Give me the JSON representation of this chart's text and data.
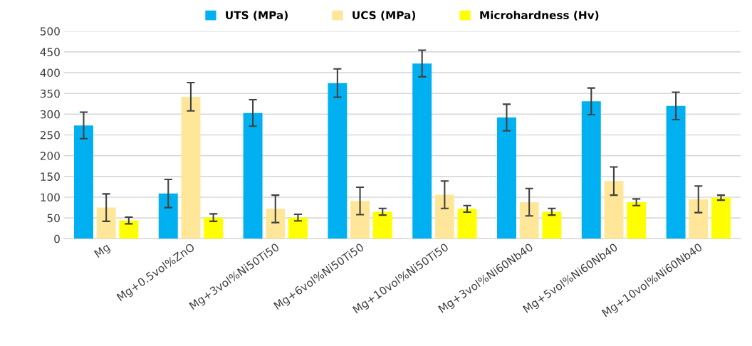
{
  "chart_data": {
    "type": "bar",
    "categories": [
      "Mg",
      "Mg+0.5vol%ZnO",
      "Mg+3vol%Ni50Ti50",
      "Mg+6vol%Ni50Ti50",
      "Mg+10vol%Ni50Ti50",
      "Mg+3vol%Ni60Nb40",
      "Mg+5vol%Ni60Nb40",
      "Mg+10vol%Ni60Nb40"
    ],
    "series": [
      {
        "name": "UTS (MPa)",
        "color": "#00b0f0",
        "values": [
          273,
          109,
          303,
          375,
          422,
          292,
          331,
          320
        ],
        "errors": [
          32,
          34,
          32,
          34,
          32,
          32,
          32,
          33
        ]
      },
      {
        "name": "UCS (MPa)",
        "color": "#ffe699",
        "values": [
          75,
          342,
          72,
          91,
          106,
          88,
          139,
          95
        ],
        "errors": [
          33,
          34,
          33,
          33,
          33,
          33,
          34,
          32
        ]
      },
      {
        "name": "Microhardness (Hv)",
        "color": "#ffff00",
        "values": [
          44,
          51,
          51,
          65,
          72,
          65,
          88,
          99
        ],
        "errors": [
          8,
          9,
          8,
          8,
          8,
          8,
          8,
          6
        ]
      }
    ],
    "ylim": [
      0,
      500
    ],
    "yticks": [
      0,
      50,
      100,
      150,
      200,
      250,
      300,
      350,
      400,
      450,
      500
    ],
    "grid": "y",
    "legend": "top"
  }
}
